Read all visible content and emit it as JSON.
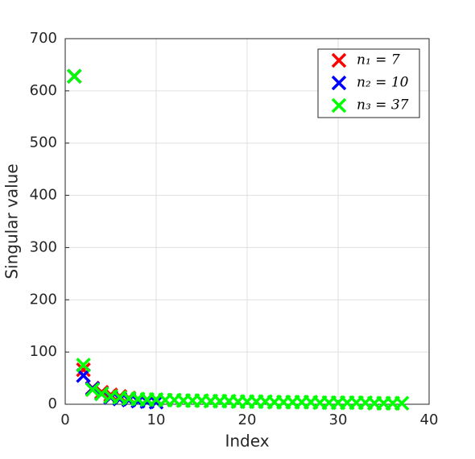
{
  "chart_data": {
    "type": "scatter",
    "xlabel": "Index",
    "ylabel": "Singular value",
    "xlim": [
      0,
      40
    ],
    "ylim": [
      0,
      700
    ],
    "xticks": [
      0,
      10,
      20,
      30,
      40
    ],
    "yticks": [
      0,
      100,
      200,
      300,
      400,
      500,
      600,
      700
    ],
    "grid": true,
    "legend": "northeast",
    "series": [
      {
        "name": "n₁ = 7",
        "color": "#ff0000",
        "x": [
          1,
          2,
          3,
          4,
          5,
          6,
          7
        ],
        "values": [
          628,
          66,
          31,
          23,
          18,
          15,
          12
        ]
      },
      {
        "name": "n₂ = 10",
        "color": "#0000ff",
        "x": [
          1,
          2,
          3,
          4,
          5,
          6,
          7,
          8,
          9,
          10
        ],
        "values": [
          628,
          55,
          30,
          20,
          13,
          10,
          8,
          6,
          5,
          4
        ]
      },
      {
        "name": "n₃ = 37",
        "color": "#00ff00",
        "x": [
          1,
          2,
          3,
          4,
          5,
          6,
          7,
          8,
          9,
          10,
          11,
          12,
          13,
          14,
          15,
          16,
          17,
          18,
          19,
          20,
          21,
          22,
          23,
          24,
          25,
          26,
          27,
          28,
          29,
          30,
          31,
          32,
          33,
          34,
          35,
          36,
          37
        ],
        "values": [
          628,
          75,
          28,
          20,
          15,
          13,
          11,
          10,
          9,
          9,
          8,
          8,
          7,
          7,
          7,
          6,
          6,
          6,
          5,
          5,
          5,
          5,
          4,
          4,
          4,
          4,
          4,
          3,
          3,
          3,
          3,
          3,
          3,
          2,
          2,
          2,
          2
        ]
      }
    ]
  }
}
